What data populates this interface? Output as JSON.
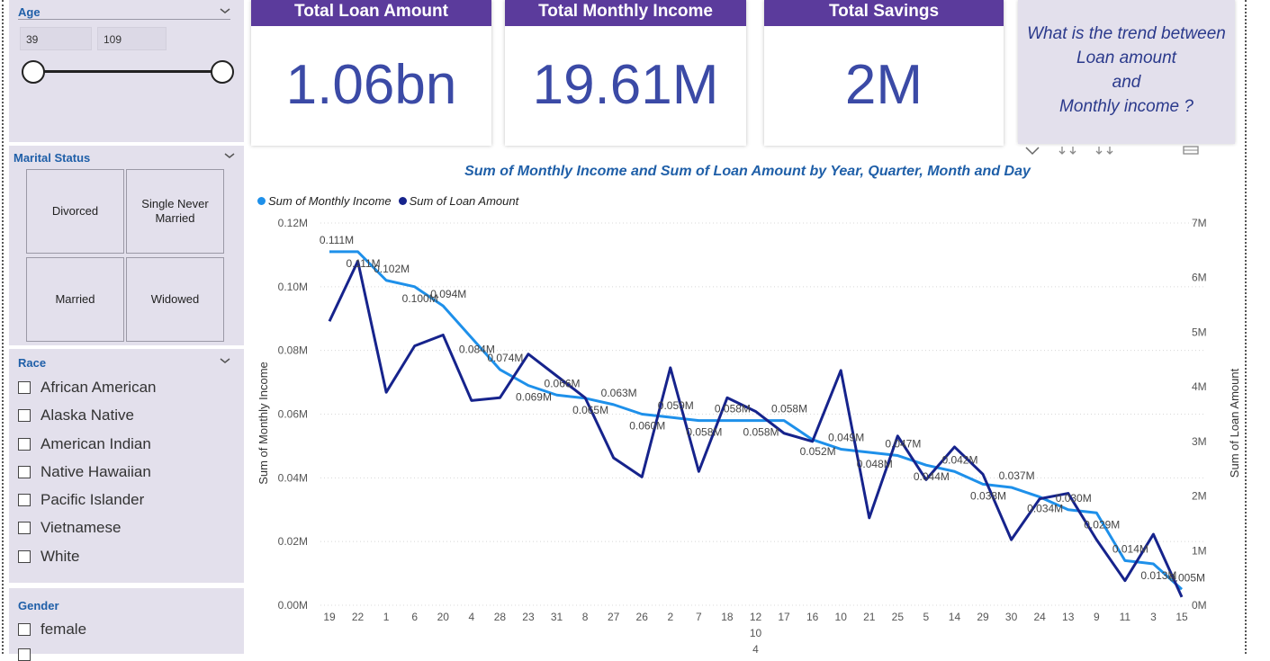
{
  "slicers": {
    "age": {
      "title": "Age",
      "min": "39",
      "max": "109"
    },
    "marital": {
      "title": "Marital Status",
      "options": [
        "Divorced",
        "Single Never Married",
        "Married",
        "Widowed"
      ]
    },
    "race": {
      "title": "Race",
      "options": [
        "African American",
        "Alaska Native",
        "American Indian",
        "Native Hawaiian",
        "Pacific Islander",
        "Vietnamese",
        "White"
      ]
    },
    "gender": {
      "title": "Gender",
      "options": [
        "female"
      ]
    }
  },
  "kpis": [
    {
      "title": "Total Loan Amount",
      "value": "1.06bn"
    },
    {
      "title": "Total Monthly Income",
      "value": "19.61M"
    },
    {
      "title": "Total Savings",
      "value": "2M"
    }
  ],
  "question": {
    "lines": [
      "What is the trend between",
      "Loan amount",
      "and",
      "Monthly income ?"
    ]
  },
  "colors": {
    "income": "#1e90ea",
    "loan": "#16238c",
    "header": "#5b3b9c",
    "panel": "#e3e0ec"
  },
  "chart_data": {
    "type": "line",
    "title": "Sum of Monthly Income and Sum of Loan Amount by Year, Quarter, Month and Day",
    "ylabel": "Sum of Monthly Income",
    "y2label": "Sum of Loan Amount",
    "ylim": [
      0,
      0.12
    ],
    "y2lim": [
      0,
      7
    ],
    "y_ticks": [
      "0.00M",
      "0.02M",
      "0.04M",
      "0.06M",
      "0.08M",
      "0.10M",
      "0.12M"
    ],
    "y2_ticks": [
      "0M",
      "1M",
      "2M",
      "3M",
      "4M",
      "5M",
      "6M",
      "7M"
    ],
    "categories": [
      "19",
      "22",
      "1",
      "6",
      "20",
      "4",
      "28",
      "23",
      "31",
      "8",
      "27",
      "26",
      "2",
      "7",
      "18",
      "12",
      "17",
      "16",
      "10",
      "21",
      "25",
      "5",
      "14",
      "29",
      "30",
      "24",
      "13",
      "9",
      "11",
      "3",
      "15"
    ],
    "x_sublabels": [
      "10",
      "4"
    ],
    "legend_position": "top-left",
    "series": [
      {
        "name": "Sum of Monthly Income",
        "axis": "left",
        "values": [
          0.111,
          0.111,
          0.102,
          0.1,
          0.094,
          0.084,
          0.074,
          0.069,
          0.066,
          0.065,
          0.063,
          0.06,
          0.059,
          0.058,
          0.058,
          0.058,
          0.058,
          0.052,
          0.049,
          0.048,
          0.047,
          0.044,
          0.042,
          0.038,
          0.037,
          0.034,
          0.03,
          0.029,
          0.014,
          0.013,
          0.005
        ],
        "labels": [
          "0.111M",
          "0.111M",
          "0.102M",
          "0.100M",
          "0.094M",
          "0.084M",
          "0.074M",
          "0.069M",
          "0.066M",
          "0.065M",
          "0.063M",
          "0.060M",
          "0.059M",
          "0.058M",
          "0.058M",
          "0.058M",
          "0.058M",
          "0.052M",
          "0.049M",
          "0.048M",
          "0.047M",
          "0.044M",
          "0.042M",
          "0.038M",
          "0.037M",
          "0.034M",
          "0.030M",
          "0.029M",
          "0.014M",
          "0.013M",
          "0.005M"
        ]
      },
      {
        "name": "Sum of Loan Amount",
        "axis": "right",
        "values": [
          5.2,
          6.3,
          3.9,
          4.75,
          4.95,
          3.75,
          3.8,
          4.6,
          4.2,
          3.8,
          2.7,
          2.35,
          4.35,
          2.45,
          3.8,
          3.55,
          3.15,
          3.0,
          4.3,
          1.6,
          3.1,
          2.3,
          2.9,
          2.4,
          1.2,
          1.95,
          2.05,
          1.2,
          0.45,
          1.3,
          0.15
        ]
      }
    ]
  }
}
